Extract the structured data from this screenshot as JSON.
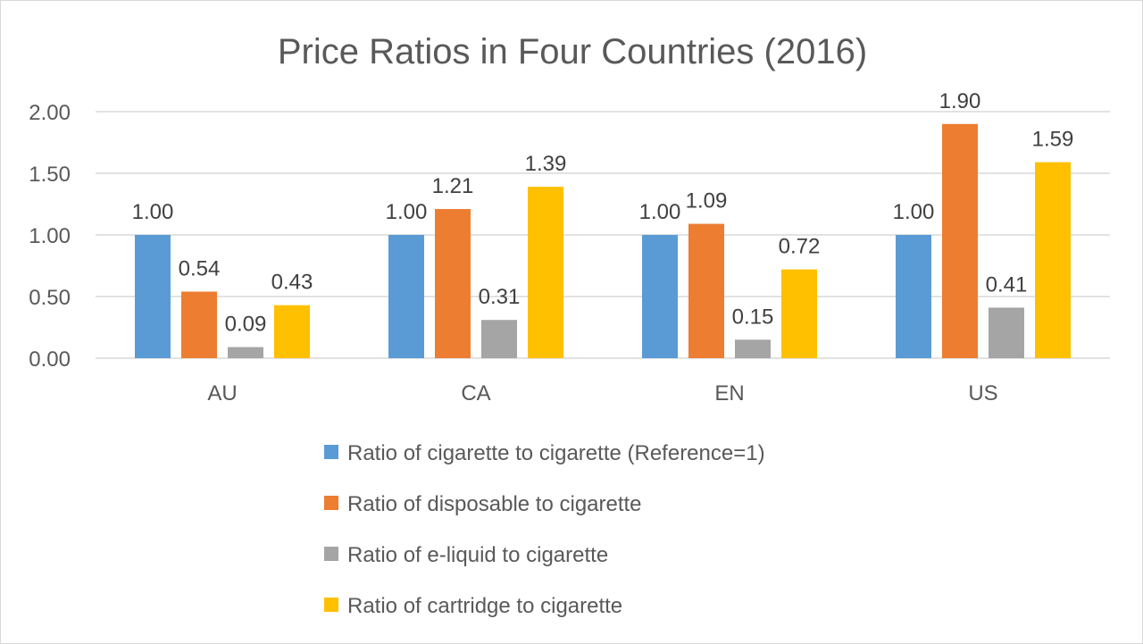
{
  "chart_data": {
    "type": "bar",
    "title": "Price Ratios in Four Countries (2016)",
    "xlabel": "",
    "ylabel": "",
    "ylim": [
      0,
      2
    ],
    "yticks": [
      "0.00",
      "0.50",
      "1.00",
      "1.50",
      "2.00"
    ],
    "grid": true,
    "legend_position": "bottom",
    "categories": [
      "AU",
      "CA",
      "EN",
      "US"
    ],
    "series": [
      {
        "name": "Ratio of cigarette to cigarette (Reference=1)",
        "color": "#5B9BD5",
        "values": [
          1.0,
          1.0,
          1.0,
          1.0
        ],
        "labels": [
          "1.00",
          "1.00",
          "1.00",
          "1.00"
        ]
      },
      {
        "name": "Ratio of disposable to cigarette",
        "color": "#ED7D31",
        "values": [
          0.54,
          1.21,
          1.09,
          1.9
        ],
        "labels": [
          "0.54",
          "1.21",
          "1.09",
          "1.90"
        ]
      },
      {
        "name": "Ratio of e-liquid to cigarette",
        "color": "#A5A5A5",
        "values": [
          0.09,
          0.31,
          0.15,
          0.41
        ],
        "labels": [
          "0.09",
          "0.31",
          "0.15",
          "0.41"
        ]
      },
      {
        "name": "Ratio of cartridge to cigarette",
        "color": "#FFC000",
        "values": [
          0.43,
          1.39,
          0.72,
          1.59
        ],
        "labels": [
          "0.43",
          "1.39",
          "0.72",
          "1.59"
        ]
      }
    ]
  }
}
